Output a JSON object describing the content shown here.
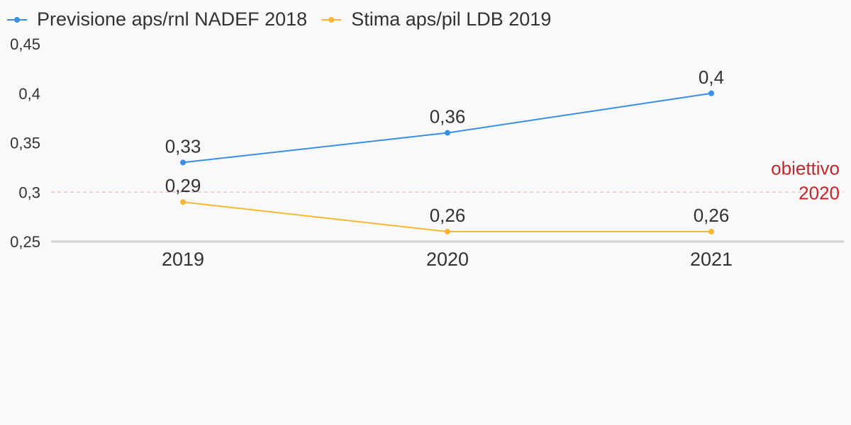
{
  "chart_data": {
    "type": "line",
    "x": [
      "2019",
      "2020",
      "2021"
    ],
    "ylim": [
      0.25,
      0.45
    ],
    "yticks": [
      {
        "value": 0.45,
        "label": "0,45"
      },
      {
        "value": 0.4,
        "label": "0,4"
      },
      {
        "value": 0.35,
        "label": "0,35"
      },
      {
        "value": 0.3,
        "label": "0,3"
      },
      {
        "value": 0.25,
        "label": "0,25"
      }
    ],
    "series": [
      {
        "name": "Previsione aps/rnl NADEF 2018",
        "color": "#3a8ee6",
        "values": [
          0.33,
          0.36,
          0.4
        ],
        "labels": [
          "0,33",
          "0,36",
          "0,4"
        ]
      },
      {
        "name": "Stima aps/pil LDB 2019",
        "color": "#f7b733",
        "values": [
          0.29,
          0.26,
          0.26
        ],
        "labels": [
          "0,29",
          "0,26",
          "0,26"
        ]
      }
    ],
    "reference_line": {
      "value": 0.3,
      "label_line1": "obiettivo",
      "label_line2": "2020",
      "color": "#c0282d"
    },
    "legend_position": "top-left",
    "grid": false
  }
}
